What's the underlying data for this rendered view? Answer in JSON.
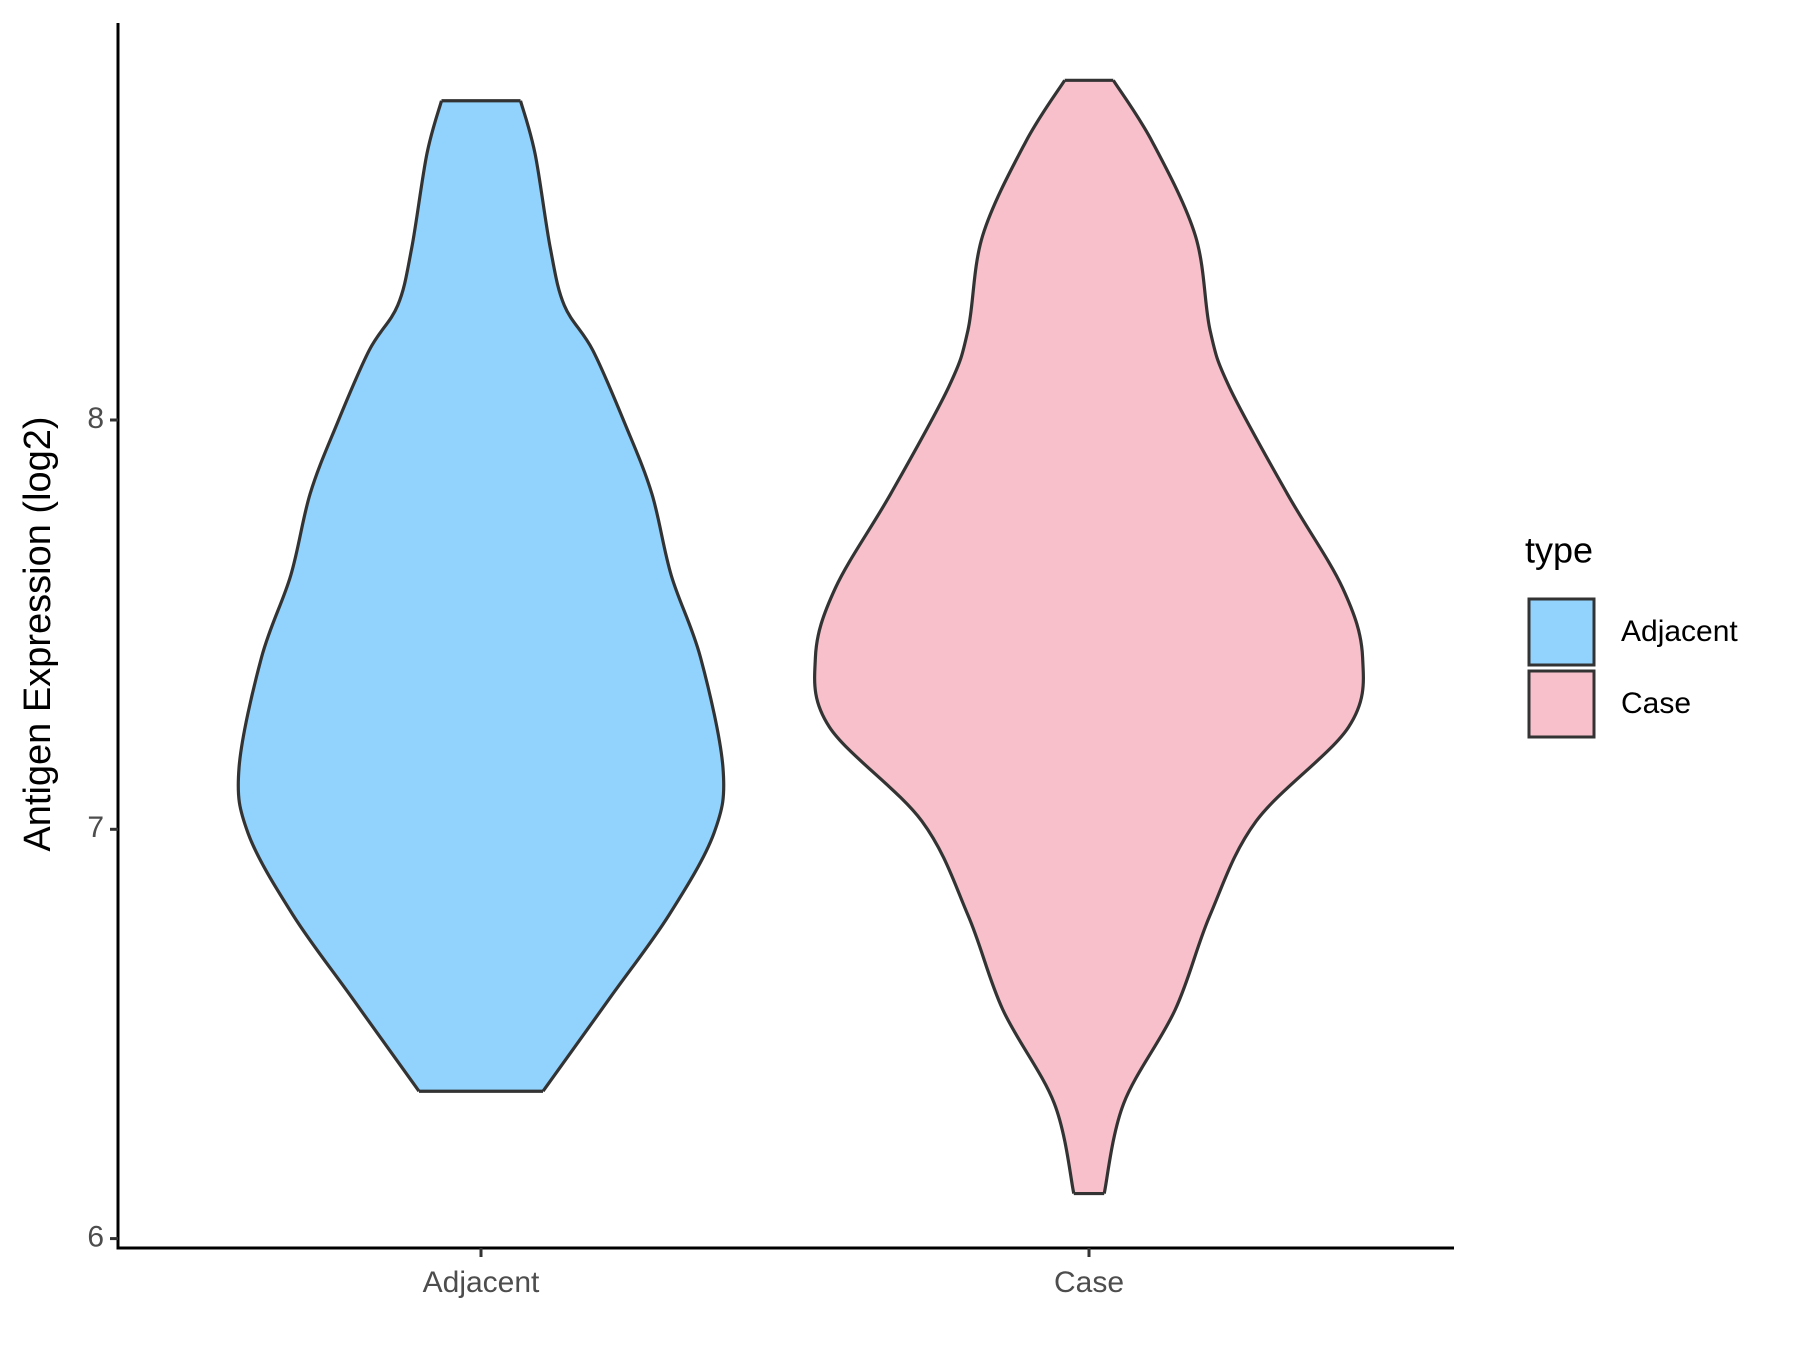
{
  "chart_data": {
    "type": "violin",
    "y_label": "Antigen Expression (log2)",
    "categories": [
      "Adjacent",
      "Case"
    ],
    "legend_title": "type",
    "legend_position": "right",
    "series": [
      {
        "name": "Adjacent",
        "color": "#92d3fe",
        "y": [
          8.78,
          8.65,
          8.42,
          8.28,
          8.17,
          7.99,
          7.82,
          7.62,
          7.42,
          7.15,
          6.99,
          6.79,
          6.59,
          6.36
        ],
        "width": [
          0.065,
          0.089,
          0.114,
          0.137,
          0.184,
          0.237,
          0.281,
          0.313,
          0.361,
          0.398,
          0.383,
          0.309,
          0.213,
          0.102
        ]
      },
      {
        "name": "Case",
        "color": "#f7c0cb",
        "y": [
          8.83,
          8.68,
          8.45,
          8.22,
          8.08,
          7.82,
          7.59,
          7.42,
          7.25,
          7.02,
          6.79,
          6.56,
          6.33,
          6.11
        ],
        "width": [
          0.04,
          0.104,
          0.175,
          0.199,
          0.231,
          0.326,
          0.417,
          0.45,
          0.427,
          0.275,
          0.199,
          0.142,
          0.057,
          0.025
        ]
      }
    ],
    "ylim": [
      5.977,
      8.97
    ],
    "yticks": [
      6,
      7,
      8
    ],
    "grid": false
  }
}
